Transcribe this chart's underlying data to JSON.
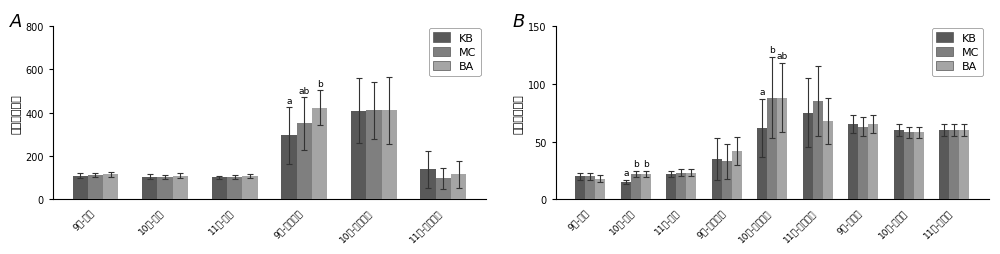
{
  "chart_A": {
    "title": "A",
    "ylabel": "黄芩地上部分",
    "ylim": [
      0,
      800
    ],
    "yticks": [
      0,
      200,
      400,
      600,
      800
    ],
    "groups": [
      "9月-株高",
      "10月-株高",
      "11月-株高",
      "9月-地上鮮重",
      "10月-地上鮮重",
      "11月-地上鮮重"
    ],
    "KB_values": [
      110,
      105,
      102,
      295,
      408,
      140
    ],
    "MC_values": [
      113,
      103,
      103,
      350,
      410,
      97
    ],
    "BA_values": [
      115,
      110,
      108,
      422,
      410,
      115
    ],
    "KB_errors": [
      10,
      10,
      8,
      130,
      150,
      85
    ],
    "MC_errors": [
      10,
      8,
      8,
      120,
      130,
      50
    ],
    "BA_errors": [
      12,
      10,
      10,
      80,
      155,
      60
    ],
    "annotations": [
      {
        "group_idx": 3,
        "texts": [
          "a",
          "ab",
          "b"
        ]
      }
    ]
  },
  "chart_B": {
    "title": "B",
    "ylabel": "黄芩地下部分",
    "ylim": [
      0,
      150
    ],
    "yticks": [
      0,
      50,
      100,
      150
    ],
    "groups": [
      "9月-根長",
      "10月-根長",
      "11月-根長",
      "9月-地下鮮重",
      "10月-地下鮮重",
      "11月-地下鮮重",
      "9月-含水量",
      "10月-含水量",
      "11月-含水量"
    ],
    "KB_values": [
      20,
      15,
      22,
      35,
      62,
      75,
      65,
      60,
      60
    ],
    "MC_values": [
      20,
      22,
      23,
      33,
      88,
      85,
      63,
      58,
      60
    ],
    "BA_values": [
      18,
      22,
      23,
      42,
      88,
      68,
      65,
      58,
      60
    ],
    "KB_errors": [
      3,
      2,
      3,
      18,
      25,
      30,
      8,
      5,
      5
    ],
    "MC_errors": [
      3,
      3,
      3,
      15,
      35,
      30,
      8,
      5,
      5
    ],
    "BA_errors": [
      3,
      3,
      3,
      12,
      30,
      20,
      8,
      5,
      5
    ],
    "annotations": [
      {
        "group_idx": 1,
        "texts": [
          "a",
          "b",
          "b"
        ]
      },
      {
        "group_idx": 4,
        "texts": [
          "a",
          "b",
          "ab"
        ]
      }
    ]
  },
  "colors": {
    "KB": "#595959",
    "MC": "#7f7f7f",
    "BA": "#a5a5a5"
  },
  "bar_width": 0.22,
  "legend_labels": [
    "KB",
    "MC",
    "BA"
  ]
}
